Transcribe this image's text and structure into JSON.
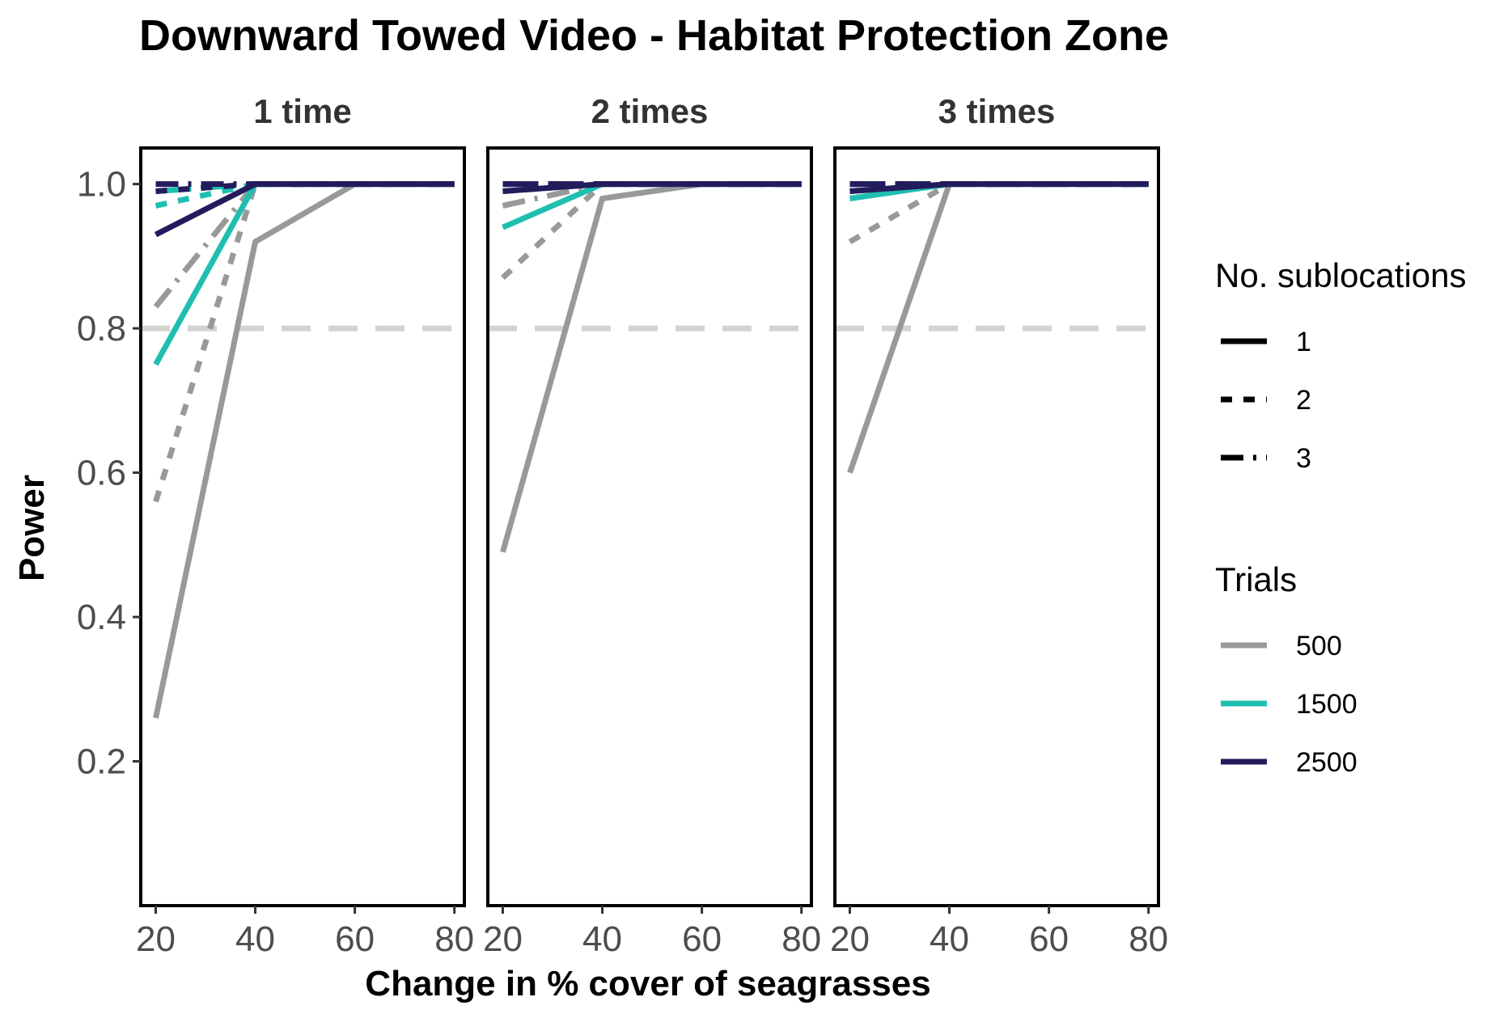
{
  "chart_data": {
    "type": "line",
    "title": "Downward Towed Video - Habitat Protection Zone",
    "xlabel": "Change in % cover of seagrasses",
    "ylabel": "Power",
    "x": [
      20,
      40,
      60,
      80
    ],
    "x_ticks": [
      20,
      40,
      60,
      80
    ],
    "y_ticks": [
      0.2,
      0.4,
      0.6,
      0.8,
      1.0
    ],
    "y_tick_labels": [
      "0.2",
      "0.4",
      "0.6",
      "0.8",
      "1.0"
    ],
    "x_tick_labels": [
      "20",
      "40",
      "60",
      "80"
    ],
    "xlim": [
      17,
      82
    ],
    "ylim": [
      0.0,
      1.05
    ],
    "reference_line": {
      "y": 0.8,
      "color": "#d3d3d3",
      "linetype": "dashed"
    },
    "grid": false,
    "legend_position": "right",
    "legends": {
      "linetype": {
        "title": "No. sublocations",
        "entries": [
          "1",
          "2",
          "3"
        ]
      },
      "color": {
        "title": "Trials",
        "entries": [
          {
            "label": "500",
            "color": "#999999"
          },
          {
            "label": "1500",
            "color": "#1fbfb0"
          },
          {
            "label": "2500",
            "color": "#231c5c"
          }
        ]
      }
    },
    "panels": [
      {
        "label": "1 time",
        "series": [
          {
            "trials": "500",
            "sublocations": "1",
            "values": [
              0.26,
              0.92,
              1.0,
              1.0
            ]
          },
          {
            "trials": "500",
            "sublocations": "2",
            "values": [
              0.56,
              1.0,
              1.0,
              1.0
            ]
          },
          {
            "trials": "500",
            "sublocations": "3",
            "values": [
              0.83,
              1.0,
              1.0,
              1.0
            ]
          },
          {
            "trials": "1500",
            "sublocations": "1",
            "values": [
              0.75,
              1.0,
              1.0,
              1.0
            ]
          },
          {
            "trials": "1500",
            "sublocations": "2",
            "values": [
              0.97,
              1.0,
              1.0,
              1.0
            ]
          },
          {
            "trials": "1500",
            "sublocations": "3",
            "values": [
              0.99,
              1.0,
              1.0,
              1.0
            ]
          },
          {
            "trials": "2500",
            "sublocations": "1",
            "values": [
              0.93,
              1.0,
              1.0,
              1.0
            ]
          },
          {
            "trials": "2500",
            "sublocations": "2",
            "values": [
              0.99,
              1.0,
              1.0,
              1.0
            ]
          },
          {
            "trials": "2500",
            "sublocations": "3",
            "values": [
              1.0,
              1.0,
              1.0,
              1.0
            ]
          }
        ]
      },
      {
        "label": "2 times",
        "series": [
          {
            "trials": "500",
            "sublocations": "1",
            "values": [
              0.49,
              0.98,
              1.0,
              1.0
            ]
          },
          {
            "trials": "500",
            "sublocations": "2",
            "values": [
              0.87,
              1.0,
              1.0,
              1.0
            ]
          },
          {
            "trials": "500",
            "sublocations": "3",
            "values": [
              0.97,
              1.0,
              1.0,
              1.0
            ]
          },
          {
            "trials": "1500",
            "sublocations": "1",
            "values": [
              0.94,
              1.0,
              1.0,
              1.0
            ]
          },
          {
            "trials": "1500",
            "sublocations": "2",
            "values": [
              0.99,
              1.0,
              1.0,
              1.0
            ]
          },
          {
            "trials": "1500",
            "sublocations": "3",
            "values": [
              1.0,
              1.0,
              1.0,
              1.0
            ]
          },
          {
            "trials": "2500",
            "sublocations": "1",
            "values": [
              0.99,
              1.0,
              1.0,
              1.0
            ]
          },
          {
            "trials": "2500",
            "sublocations": "2",
            "values": [
              1.0,
              1.0,
              1.0,
              1.0
            ]
          },
          {
            "trials": "2500",
            "sublocations": "3",
            "values": [
              1.0,
              1.0,
              1.0,
              1.0
            ]
          }
        ]
      },
      {
        "label": "3 times",
        "series": [
          {
            "trials": "500",
            "sublocations": "1",
            "values": [
              0.6,
              1.0,
              1.0,
              1.0
            ]
          },
          {
            "trials": "500",
            "sublocations": "2",
            "values": [
              0.92,
              1.0,
              1.0,
              1.0
            ]
          },
          {
            "trials": "500",
            "sublocations": "3",
            "values": [
              0.99,
              1.0,
              1.0,
              1.0
            ]
          },
          {
            "trials": "1500",
            "sublocations": "1",
            "values": [
              0.98,
              1.0,
              1.0,
              1.0
            ]
          },
          {
            "trials": "1500",
            "sublocations": "2",
            "values": [
              1.0,
              1.0,
              1.0,
              1.0
            ]
          },
          {
            "trials": "1500",
            "sublocations": "3",
            "values": [
              1.0,
              1.0,
              1.0,
              1.0
            ]
          },
          {
            "trials": "2500",
            "sublocations": "1",
            "values": [
              0.99,
              1.0,
              1.0,
              1.0
            ]
          },
          {
            "trials": "2500",
            "sublocations": "2",
            "values": [
              1.0,
              1.0,
              1.0,
              1.0
            ]
          },
          {
            "trials": "2500",
            "sublocations": "3",
            "values": [
              1.0,
              1.0,
              1.0,
              1.0
            ]
          }
        ]
      }
    ]
  }
}
